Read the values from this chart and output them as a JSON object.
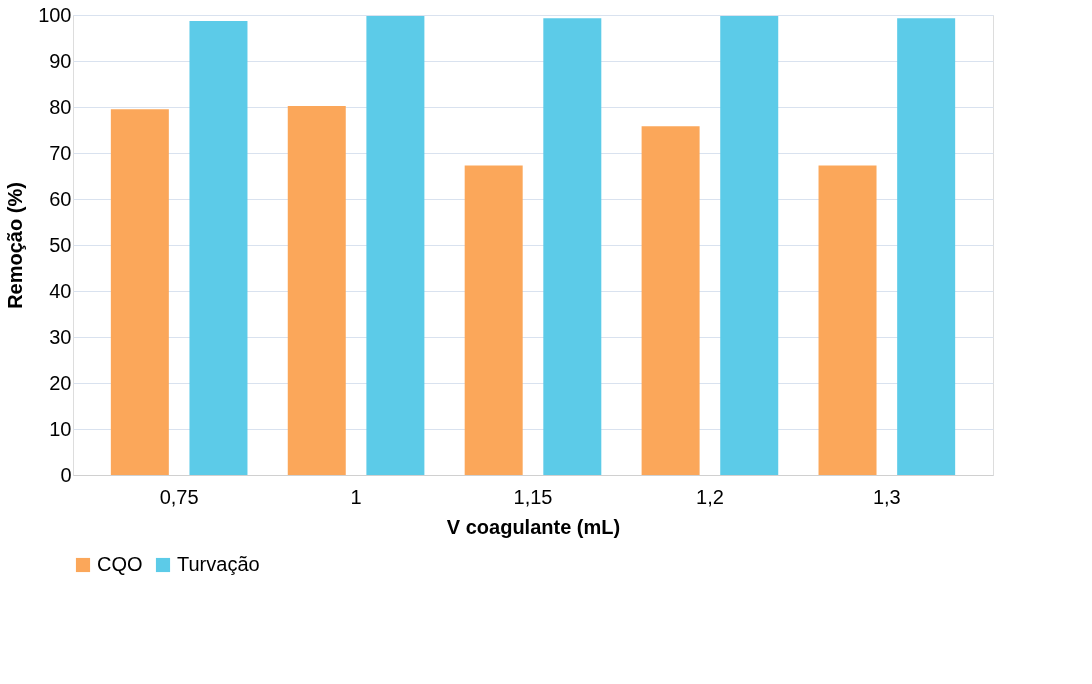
{
  "chart_data": {
    "type": "bar",
    "xlabel": "V coagulante (mL)",
    "ylabel": "Remoção (%)",
    "categories": [
      "0,75",
      "1",
      "1,15",
      "1,2",
      "1,3"
    ],
    "series": [
      {
        "name": "CQO",
        "color": "#fba75a",
        "values": [
          79.5,
          80.2,
          67.3,
          75.8,
          67.3
        ]
      },
      {
        "name": "Turvação",
        "color": "#5ccbe8",
        "values": [
          98.7,
          99.8,
          99.3,
          99.8,
          99.3
        ]
      }
    ],
    "ylim": [
      0,
      100
    ],
    "yticks": [
      0,
      10,
      20,
      30,
      40,
      50,
      60,
      70,
      80,
      90,
      100
    ],
    "grid": "y",
    "legend": "bottom"
  }
}
